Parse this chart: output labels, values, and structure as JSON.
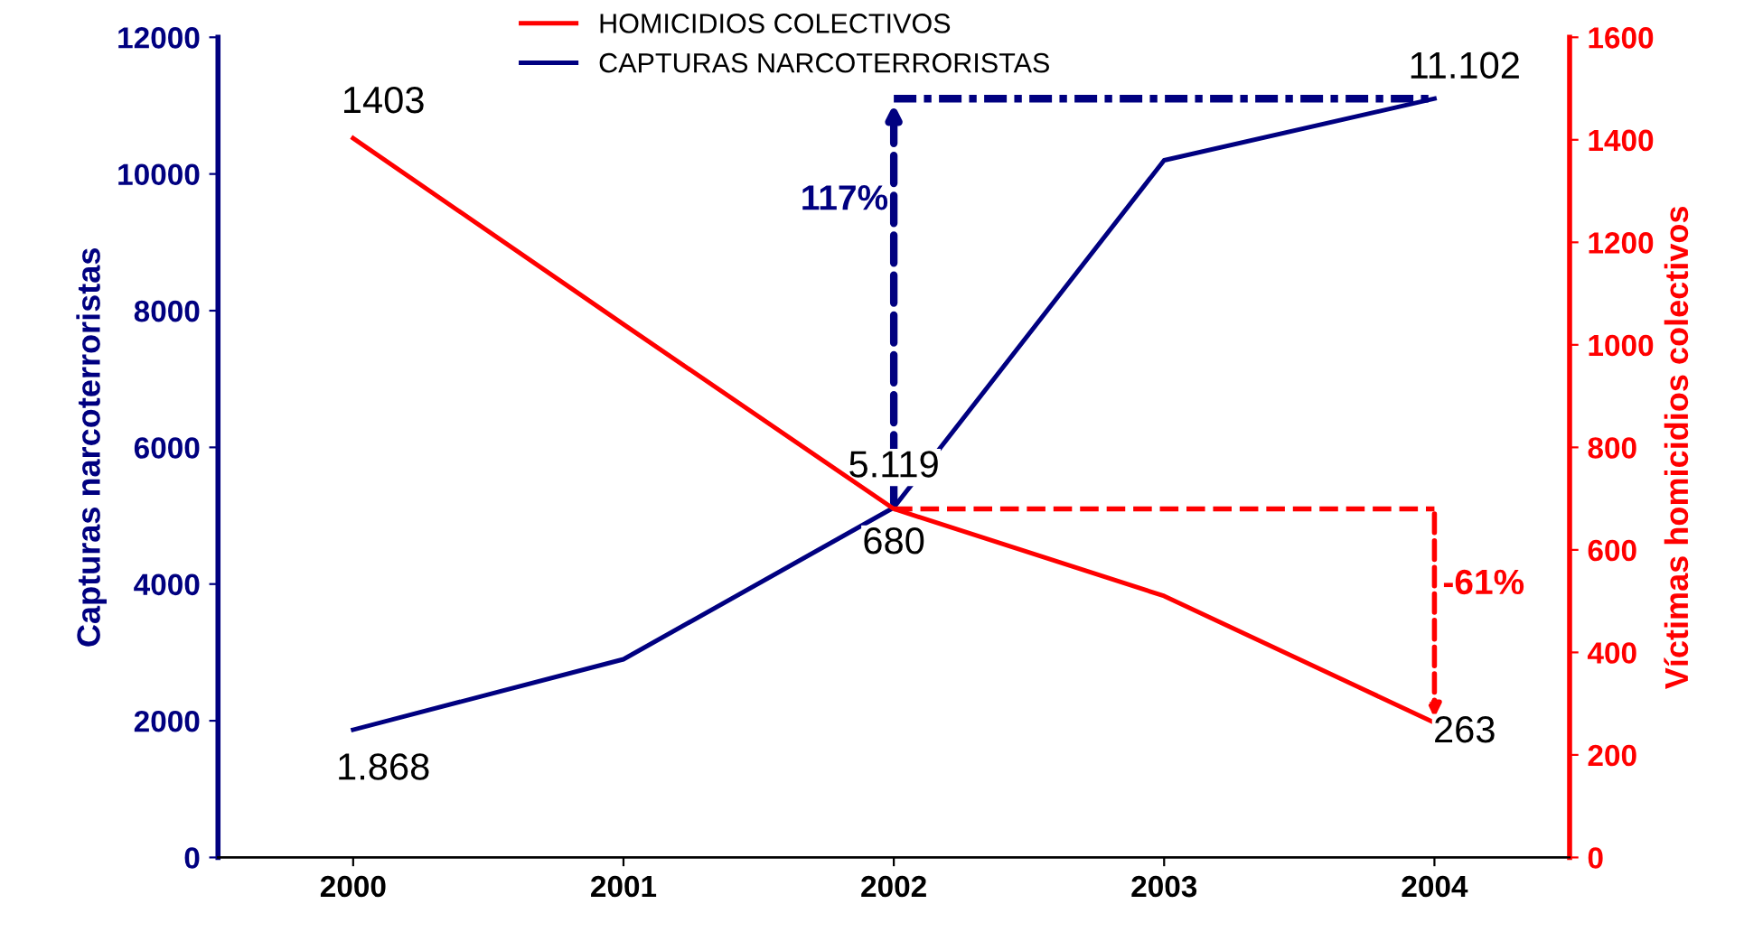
{
  "chart_data": {
    "type": "line",
    "categories": [
      "2000",
      "2001",
      "2002",
      "2003",
      "2004"
    ],
    "ylabel": "Capturas narcoterroristas",
    "y2label": "Víctimas homicidios colectivos",
    "series": [
      {
        "name": "HOMICIDIOS COLECTIVOS",
        "color": "#ff0000",
        "axis": "y2",
        "values": [
          1403,
          1040,
          680,
          510,
          263
        ],
        "value_labels": [
          "1403",
          null,
          "680",
          null,
          "263"
        ]
      },
      {
        "name": "CAPTURAS NARCOTERRORISTAS",
        "color": "#000080",
        "values": [
          1868,
          2900,
          5119,
          10200,
          11102
        ],
        "value_labels": [
          "1.868",
          null,
          "5.119",
          null,
          "11.102"
        ]
      }
    ],
    "ylim": [
      0,
      12000
    ],
    "yticks": [
      0,
      2000,
      4000,
      6000,
      8000,
      10000,
      12000
    ],
    "y2lim": [
      0,
      1600
    ],
    "y2ticks": [
      0,
      200,
      400,
      600,
      800,
      1000,
      1200,
      1400,
      1600
    ],
    "annotations": [
      "117%",
      "-61%"
    ],
    "grid": false,
    "legend": "top",
    "marker": "none",
    "line_style": "solid"
  }
}
